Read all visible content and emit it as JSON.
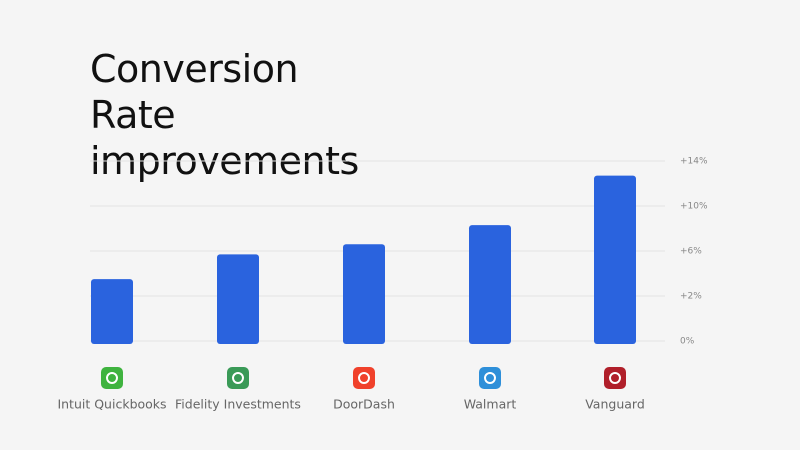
{
  "chart_data": {
    "type": "bar",
    "title": "Conversion Rate improvements",
    "categories": [
      "Intuit Quickbooks",
      "Fidelity Investments",
      "DoorDash",
      "Walmart",
      "Vanguard"
    ],
    "values": [
      3.5,
      5.7,
      6.6,
      8.3,
      12.7
    ],
    "color": "#2a63de",
    "ylim": [
      0,
      14
    ],
    "yticks": [
      {
        "value": 0,
        "label": "0%"
      },
      {
        "value": 2,
        "label": "+2%"
      },
      {
        "value": 6,
        "label": "+6%"
      },
      {
        "value": 10,
        "label": "+10%"
      },
      {
        "value": 14,
        "label": "+14%"
      }
    ],
    "grid": true
  }
}
